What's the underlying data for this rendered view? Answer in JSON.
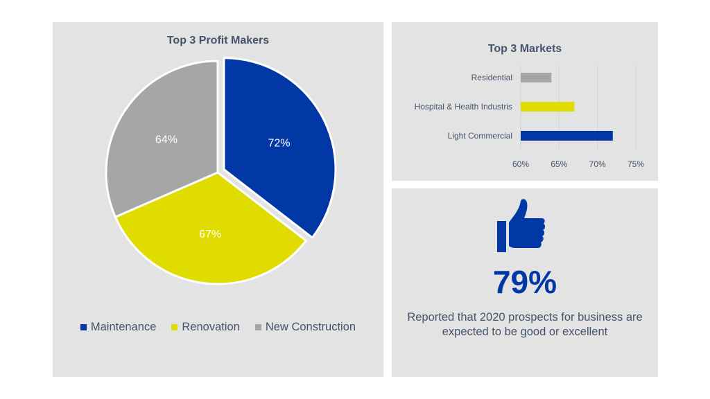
{
  "colors": {
    "blue": "#0238a6",
    "yellow": "#e0dc00",
    "gray": "#a6a6a6",
    "text": "#44546a",
    "white": "#ffffff"
  },
  "chart_data": [
    {
      "type": "pie",
      "title": "Top 3 Profit Makers",
      "slices": [
        {
          "name": "Maintenance",
          "value": 72,
          "label": "72%",
          "color": "#0238a6",
          "exploded": true
        },
        {
          "name": "Renovation",
          "value": 67,
          "label": "67%",
          "color": "#e0dc00",
          "exploded": false
        },
        {
          "name": "New Construction",
          "value": 64,
          "label": "64%",
          "color": "#a6a6a6",
          "exploded": false
        }
      ],
      "legend": {
        "placement": "bottom",
        "entries": [
          "Maintenance",
          "Renovation",
          "New Construction"
        ]
      }
    },
    {
      "type": "bar",
      "orientation": "horizontal",
      "title": "Top 3 Markets",
      "categories": [
        "Residential",
        "Hospital & Health Industris",
        "Light Commercial"
      ],
      "values": [
        64,
        67,
        72
      ],
      "colors": [
        "#a6a6a6",
        "#e0dc00",
        "#0238a6"
      ],
      "xlim": [
        60,
        75
      ],
      "xticks": [
        60,
        65,
        70,
        75
      ],
      "xtick_labels": [
        "60%",
        "65%",
        "70%",
        "75%"
      ],
      "grid": true
    }
  ],
  "stat": {
    "icon": "thumbs-up-icon",
    "value": "79%",
    "caption_line1": "Reported that 2020 prospects for business are",
    "caption_line2": "expected to be good or excellent"
  }
}
